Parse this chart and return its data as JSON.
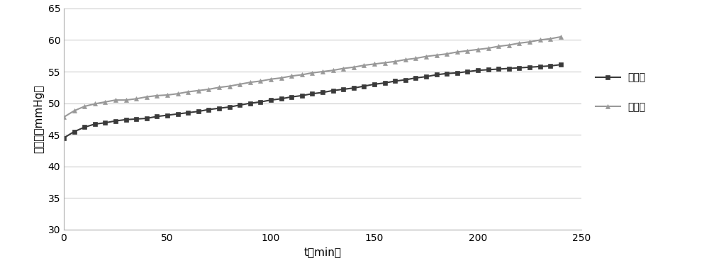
{
  "series1_label": "牛全血",
  "series2_label": "代全血",
  "series1_color": "#3a3a3a",
  "series2_color": "#999999",
  "series1_marker": "s",
  "series2_marker": "^",
  "series1_x": [
    0,
    5,
    10,
    15,
    20,
    25,
    30,
    35,
    40,
    45,
    50,
    55,
    60,
    65,
    70,
    75,
    80,
    85,
    90,
    95,
    100,
    105,
    110,
    115,
    120,
    125,
    130,
    135,
    140,
    145,
    150,
    155,
    160,
    165,
    170,
    175,
    180,
    185,
    190,
    195,
    200,
    205,
    210,
    215,
    220,
    225,
    230,
    235,
    240
  ],
  "series1_y": [
    44.5,
    45.5,
    46.2,
    46.7,
    46.9,
    47.2,
    47.4,
    47.5,
    47.6,
    47.9,
    48.1,
    48.3,
    48.5,
    48.7,
    49.0,
    49.2,
    49.4,
    49.7,
    50.0,
    50.2,
    50.5,
    50.7,
    51.0,
    51.2,
    51.5,
    51.7,
    52.0,
    52.2,
    52.4,
    52.7,
    53.0,
    53.2,
    53.5,
    53.7,
    54.0,
    54.2,
    54.5,
    54.7,
    54.8,
    55.0,
    55.2,
    55.3,
    55.4,
    55.5,
    55.6,
    55.7,
    55.8,
    55.9,
    56.1
  ],
  "series2_x": [
    0,
    5,
    10,
    15,
    20,
    25,
    30,
    35,
    40,
    45,
    50,
    55,
    60,
    65,
    70,
    75,
    80,
    85,
    90,
    95,
    100,
    105,
    110,
    115,
    120,
    125,
    130,
    135,
    140,
    145,
    150,
    155,
    160,
    165,
    170,
    175,
    180,
    185,
    190,
    195,
    200,
    205,
    210,
    215,
    220,
    225,
    230,
    235,
    240
  ],
  "series2_y": [
    47.8,
    48.8,
    49.5,
    49.9,
    50.2,
    50.5,
    50.5,
    50.7,
    51.0,
    51.2,
    51.3,
    51.5,
    51.8,
    52.0,
    52.2,
    52.5,
    52.7,
    53.0,
    53.3,
    53.5,
    53.8,
    54.0,
    54.3,
    54.5,
    54.8,
    55.0,
    55.2,
    55.5,
    55.7,
    56.0,
    56.2,
    56.4,
    56.6,
    56.9,
    57.1,
    57.4,
    57.6,
    57.8,
    58.1,
    58.3,
    58.5,
    58.7,
    59.0,
    59.2,
    59.5,
    59.7,
    60.0,
    60.2,
    60.5
  ],
  "xlabel": "t（min）",
  "ylabel": "跨膜压（mmHg）",
  "xlim": [
    0,
    250
  ],
  "ylim": [
    30,
    65
  ],
  "yticks": [
    30,
    35,
    40,
    45,
    50,
    55,
    60,
    65
  ],
  "xticks": [
    0,
    50,
    100,
    150,
    200,
    250
  ],
  "background_color": "#ffffff",
  "grid_color": "#cccccc",
  "linewidth": 1.5,
  "markersize": 5,
  "legend_fontsize": 10,
  "axis_fontsize": 11,
  "tick_fontsize": 10
}
